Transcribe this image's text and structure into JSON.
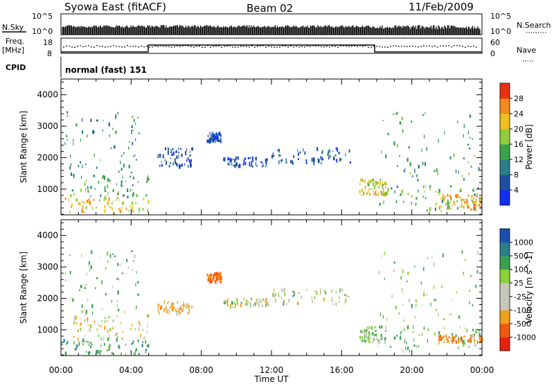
{
  "header": {
    "station": "Syowa East (fitACF)",
    "beam": "Beam 02",
    "date": "11/Feb/2009"
  },
  "top_panels": {
    "nsky_label": "N.Sky",
    "nsky_ticks": [
      "10^5",
      "10^0"
    ],
    "nsearch_label": "N.Search",
    "nsearch_ticks": [
      "10^5",
      "10^0"
    ],
    "freq_label_1": "Freq.",
    "freq_label_2": "[MHz]",
    "freq_ticks": [
      "18",
      "8"
    ],
    "nave_label": "Nave",
    "nave_ticks": [
      "60",
      "0"
    ],
    "cpid_label": "CPID",
    "cpid_value": "normal (fast) 151"
  },
  "axes": {
    "xlabel": "Time UT",
    "x_ticks": [
      "00:00",
      "04:00",
      "08:00",
      "12:00",
      "16:00",
      "20:00",
      "00:00"
    ],
    "ylabel": "Slant Range [km]",
    "y_ticks": [
      "1000",
      "2000",
      "3000",
      "4000"
    ]
  },
  "colors": {
    "power": [
      "#1030f0",
      "#1f4fa0",
      "#2a7f8a",
      "#3aa34a",
      "#8fce3a",
      "#f0c020",
      "#f08a20",
      "#e83010"
    ],
    "velocity": [
      "#e82010",
      "#f05a10",
      "#f0a020",
      "#c8c8b8",
      "#c8c8b8",
      "#8cd23a",
      "#3aa050",
      "#2a7f8a",
      "#1a50b0"
    ]
  },
  "chart_data": [
    {
      "type": "heatmap",
      "title": "Power [dB]",
      "xlabel": "",
      "ylabel": "Slant Range [km]",
      "xlim": [
        0,
        24
      ],
      "ylim": [
        180,
        4500
      ],
      "colorbar_ticks": [
        "4",
        "8",
        "12",
        "16",
        "20",
        "24",
        "28"
      ],
      "colorbar_label": "Power [dB]",
      "colorbar_range": [
        0,
        32
      ],
      "regions": [
        {
          "t0": 0.0,
          "t1": 5.0,
          "r0": 200,
          "r1": 700,
          "value": 22
        },
        {
          "t0": 0.5,
          "t1": 5.0,
          "r0": 700,
          "r1": 1500,
          "value": 13
        },
        {
          "t0": 0.2,
          "t1": 4.5,
          "r0": 1500,
          "r1": 3500,
          "value": 11
        },
        {
          "t0": 5.5,
          "t1": 7.5,
          "r0": 1700,
          "r1": 2300,
          "value": 6
        },
        {
          "t0": 8.3,
          "t1": 9.1,
          "r0": 2500,
          "r1": 2800,
          "value": 5
        },
        {
          "t0": 9.2,
          "t1": 11.8,
          "r0": 1700,
          "r1": 2000,
          "value": 5
        },
        {
          "t0": 12.0,
          "t1": 16.5,
          "r0": 1800,
          "r1": 2300,
          "value": 6
        },
        {
          "t0": 17.0,
          "t1": 18.5,
          "r0": 800,
          "r1": 1300,
          "value": 20
        },
        {
          "t0": 18.0,
          "t1": 24.0,
          "r0": 300,
          "r1": 1100,
          "value": 15
        },
        {
          "t0": 21.5,
          "t1": 24.0,
          "r0": 350,
          "r1": 800,
          "value": 24
        },
        {
          "t0": 18.0,
          "t1": 23.8,
          "r0": 1200,
          "r1": 3500,
          "value": 13
        }
      ]
    },
    {
      "type": "heatmap",
      "title": "Velocity [m s^-1]",
      "xlabel": "Time UT",
      "ylabel": "Slant Range [km]",
      "xlim": [
        0,
        24
      ],
      "ylim": [
        180,
        4500
      ],
      "colorbar_ticks": [
        "1000",
        "500",
        "100",
        "25",
        "-25",
        "-100",
        "-500",
        "-1000"
      ],
      "colorbar_label": "Velocity [m s^-1]",
      "colorbar_range": [
        -1500,
        1500
      ],
      "regions": [
        {
          "t0": 0.0,
          "t1": 5.0,
          "r0": 200,
          "r1": 700,
          "value": 300
        },
        {
          "t0": 0.5,
          "t1": 5.0,
          "r0": 700,
          "r1": 1500,
          "value": -60
        },
        {
          "t0": 0.2,
          "t1": 4.5,
          "r0": 1500,
          "r1": 3500,
          "value": 120
        },
        {
          "t0": 5.5,
          "t1": 7.5,
          "r0": 1500,
          "r1": 1900,
          "value": -300
        },
        {
          "t0": 8.3,
          "t1": 9.1,
          "r0": 2500,
          "r1": 2800,
          "value": -600
        },
        {
          "t0": 9.2,
          "t1": 11.8,
          "r0": 1700,
          "r1": 2000,
          "value": 0
        },
        {
          "t0": 12.0,
          "t1": 16.5,
          "r0": 1800,
          "r1": 2300,
          "value": 0
        },
        {
          "t0": 17.0,
          "t1": 18.5,
          "r0": 600,
          "r1": 1100,
          "value": 80
        },
        {
          "t0": 18.0,
          "t1": 24.0,
          "r0": 300,
          "r1": 1100,
          "value": 150
        },
        {
          "t0": 21.5,
          "t1": 24.0,
          "r0": 600,
          "r1": 800,
          "value": -450
        },
        {
          "t0": 18.0,
          "t1": 23.8,
          "r0": 1200,
          "r1": 3500,
          "value": 60
        }
      ]
    }
  ]
}
